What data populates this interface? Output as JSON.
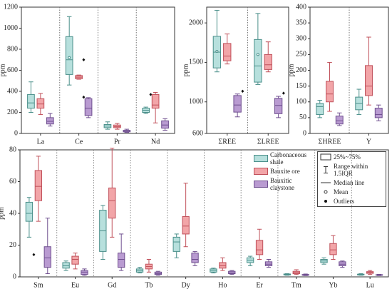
{
  "chart_data": [
    {
      "type": "box",
      "y_label": "ppm",
      "categories": [
        "La",
        "Ce",
        "Pr",
        "Nd"
      ],
      "ylim": [
        0,
        1200
      ],
      "yticks": [
        0,
        200,
        400,
        600,
        800,
        1000,
        1200
      ],
      "series": [
        {
          "color": "#b7e0dd",
          "edge": "#4a8f8a",
          "values": [
            {
              "min": 200,
              "q1": 240,
              "median": 290,
              "q3": 370,
              "max": 490
            },
            {
              "min": 460,
              "q1": 560,
              "median": 700,
              "q3": 920,
              "max": 1110,
              "mean": 720
            },
            {
              "min": 40,
              "q1": 55,
              "median": 70,
              "q3": 85,
              "max": 110
            },
            {
              "min": 190,
              "q1": 200,
              "median": 220,
              "q3": 240,
              "max": 250,
              "outliers": [
                370
              ]
            }
          ]
        },
        {
          "color": "#f2a5a8",
          "edge": "#c0505a",
          "values": [
            {
              "min": 180,
              "q1": 240,
              "median": 280,
              "q3": 330,
              "max": 380
            },
            {
              "min": 515,
              "q1": 520,
              "median": 535,
              "q3": 550,
              "max": 555,
              "outliers": [
                700,
                345
              ]
            },
            {
              "min": 40,
              "q1": 55,
              "median": 65,
              "q3": 80,
              "max": 95
            },
            {
              "min": 100,
              "q1": 240,
              "median": 270,
              "q3": 370,
              "max": 390
            }
          ]
        },
        {
          "color": "#b99bd1",
          "edge": "#6f4f8f",
          "values": [
            {
              "min": 70,
              "q1": 90,
              "median": 115,
              "q3": 150,
              "max": 190
            },
            {
              "min": 150,
              "q1": 170,
              "median": 240,
              "q3": 330,
              "max": 340
            },
            {
              "min": 10,
              "q1": 15,
              "median": 22,
              "q3": 30,
              "max": 40
            },
            {
              "min": 30,
              "q1": 50,
              "median": 80,
              "q3": 120,
              "max": 140
            }
          ]
        }
      ]
    },
    {
      "type": "box",
      "y_label": "ppm",
      "categories": [
        "ΣREE",
        "ΣLREE"
      ],
      "ylim": [
        600,
        2200
      ],
      "yticks": [
        600,
        1000,
        1500,
        2000
      ],
      "series": [
        {
          "color": "#b7e0dd",
          "edge": "#4a8f8a",
          "values": [
            {
              "min": 1380,
              "q1": 1430,
              "median": 1630,
              "q3": 1830,
              "max": 2160,
              "mean": 1640
            },
            {
              "min": 1220,
              "q1": 1250,
              "median": 1455,
              "q3": 1790,
              "max": 2120,
              "mean": 1600
            }
          ]
        },
        {
          "color": "#f2a5a8",
          "edge": "#c0505a",
          "values": [
            {
              "min": 1480,
              "q1": 1520,
              "median": 1580,
              "q3": 1740,
              "max": 1860
            },
            {
              "min": 1380,
              "q1": 1410,
              "median": 1470,
              "q3": 1600,
              "max": 1760
            }
          ]
        },
        {
          "color": "#b99bd1",
          "edge": "#6f4f8f",
          "values": [
            {
              "min": 810,
              "q1": 870,
              "median": 960,
              "q3": 1080,
              "max": 1100,
              "outliers": [
                1135
              ]
            },
            {
              "min": 800,
              "q1": 850,
              "median": 955,
              "q3": 1045,
              "max": 1070,
              "outliers": [
                1110
              ]
            }
          ]
        }
      ]
    },
    {
      "type": "box",
      "y_label": "ppm",
      "categories": [
        "ΣHREE",
        "Y"
      ],
      "ylim": [
        0,
        400
      ],
      "yticks": [
        0,
        50,
        100,
        150,
        200,
        250,
        300,
        350,
        400
      ],
      "series": [
        {
          "color": "#b7e0dd",
          "edge": "#4a8f8a",
          "values": [
            {
              "min": 50,
              "q1": 60,
              "median": 85,
              "q3": 95,
              "max": 105
            },
            {
              "min": 60,
              "q1": 75,
              "median": 95,
              "q3": 115,
              "max": 140
            }
          ]
        },
        {
          "color": "#f2a5a8",
          "edge": "#c0505a",
          "values": [
            {
              "min": 70,
              "q1": 100,
              "median": 125,
              "q3": 165,
              "max": 225
            },
            {
              "min": 90,
              "q1": 120,
              "median": 150,
              "q3": 215,
              "max": 305
            }
          ]
        },
        {
          "color": "#b99bd1",
          "edge": "#6f4f8f",
          "values": [
            {
              "min": 25,
              "q1": 30,
              "median": 40,
              "q3": 55,
              "max": 65
            },
            {
              "min": 40,
              "q1": 50,
              "median": 60,
              "q3": 80,
              "max": 90
            }
          ]
        }
      ]
    },
    {
      "type": "box",
      "y_label": "ppm",
      "categories": [
        "Sm",
        "Eu",
        "Gd",
        "Tb",
        "Dy",
        "Ho",
        "Er",
        "Tm",
        "Yb",
        "Lu"
      ],
      "ylim": [
        0,
        80
      ],
      "yticks": [
        0,
        20,
        40,
        60,
        80
      ],
      "legend_items": [
        "25%~75%",
        "Range within 1.5IQR",
        "Median line",
        "Mean",
        "Outliers"
      ],
      "series": [
        {
          "name": "Carbonaceous shale",
          "color": "#b7e0dd",
          "edge": "#4a8f8a",
          "values": [
            {
              "min": 25,
              "q1": 35,
              "median": 40,
              "q3": 47,
              "max": 50,
              "outliers": [
                14
              ]
            },
            {
              "min": 4,
              "q1": 5.5,
              "median": 7,
              "q3": 9,
              "max": 10
            },
            {
              "min": 11,
              "q1": 16,
              "median": 29,
              "q3": 42,
              "max": 45
            },
            {
              "min": 2.5,
              "q1": 3,
              "median": 4,
              "q3": 5,
              "max": 6
            },
            {
              "min": 12,
              "q1": 16,
              "median": 22,
              "q3": 25,
              "max": 27
            },
            {
              "min": 2.5,
              "q1": 3,
              "median": 4,
              "q3": 5,
              "max": 5.5
            },
            {
              "min": 7,
              "q1": 9,
              "median": 10.5,
              "q3": 12,
              "max": 13
            },
            {
              "min": 1,
              "q1": 1.2,
              "median": 1.5,
              "q3": 1.8,
              "max": 2
            },
            {
              "min": 8,
              "q1": 9,
              "median": 10,
              "q3": 11,
              "max": 12
            },
            {
              "min": 1,
              "q1": 1.2,
              "median": 1.5,
              "q3": 1.7,
              "max": 2
            }
          ]
        },
        {
          "name": "Bauxite ore",
          "color": "#f2a5a8",
          "edge": "#c0505a",
          "values": [
            {
              "min": 35,
              "q1": 48,
              "median": 57,
              "q3": 67,
              "max": 76
            },
            {
              "min": 5,
              "q1": 8,
              "median": 11,
              "q3": 13,
              "max": 15
            },
            {
              "min": 25,
              "q1": 37,
              "median": 48,
              "q3": 56,
              "max": 81
            },
            {
              "min": 3,
              "q1": 5,
              "median": 6.5,
              "q3": 8,
              "max": 11
            },
            {
              "min": 19,
              "q1": 27,
              "median": 32,
              "q3": 38,
              "max": 59
            },
            {
              "min": 4,
              "q1": 5.5,
              "median": 7,
              "q3": 9,
              "max": 12
            },
            {
              "min": 11,
              "q1": 14,
              "median": 17,
              "q3": 23,
              "max": 30
            },
            {
              "min": 1.5,
              "q1": 2,
              "median": 2.8,
              "q3": 3.5,
              "max": 4.5
            },
            {
              "min": 11,
              "q1": 14,
              "median": 17,
              "q3": 21,
              "max": 26
            },
            {
              "min": 1.5,
              "q1": 2.2,
              "median": 2.8,
              "q3": 3.3,
              "max": 4
            }
          ]
        },
        {
          "name": "Bauxitic claystone",
          "color": "#b99bd1",
          "edge": "#6f4f8f",
          "values": [
            {
              "min": 2,
              "q1": 6,
              "median": 12,
              "q3": 19,
              "max": 37
            },
            {
              "min": 1,
              "q1": 1.5,
              "median": 3,
              "q3": 4,
              "max": 5
            },
            {
              "min": 4,
              "q1": 6,
              "median": 11,
              "q3": 15,
              "max": 27
            },
            {
              "min": 1,
              "q1": 1.5,
              "median": 2,
              "q3": 3,
              "max": 3.5
            },
            {
              "min": 7,
              "q1": 9,
              "median": 11,
              "q3": 15,
              "max": 16
            },
            {
              "min": 1.5,
              "q1": 2,
              "median": 2.5,
              "q3": 3.5,
              "max": 4
            },
            {
              "min": 6,
              "q1": 7,
              "median": 8,
              "q3": 9.5,
              "max": 11
            },
            {
              "min": 0.8,
              "q1": 1,
              "median": 1.2,
              "q3": 1.5,
              "max": 1.8
            },
            {
              "min": 6,
              "q1": 7,
              "median": 8,
              "q3": 9.5,
              "max": 10
            },
            {
              "min": 0.8,
              "q1": 1,
              "median": 1.2,
              "q3": 1.4,
              "max": 1.6
            }
          ]
        }
      ]
    }
  ]
}
